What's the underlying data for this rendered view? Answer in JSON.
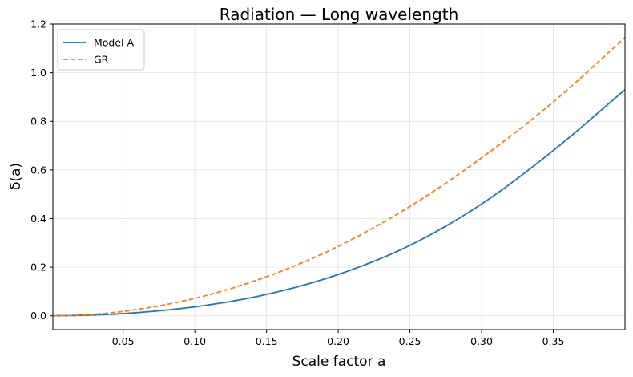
{
  "chart_data": {
    "type": "line",
    "title": "Radiation — Long wavelength",
    "xlabel": "Scale factor a",
    "ylabel": "δ(a)",
    "xlim": [
      0.001,
      0.4
    ],
    "ylim": [
      -0.057,
      1.2
    ],
    "xticks": [
      0.05,
      0.1,
      0.15,
      0.2,
      0.25,
      0.3,
      0.35
    ],
    "xtick_labels": [
      "0.05",
      "0.10",
      "0.15",
      "0.20",
      "0.25",
      "0.30",
      "0.35"
    ],
    "yticks": [
      0.0,
      0.2,
      0.4,
      0.6,
      0.8,
      1.0,
      1.2
    ],
    "ytick_labels": [
      "0.0",
      "0.2",
      "0.4",
      "0.6",
      "0.8",
      "1.0",
      "1.2"
    ],
    "grid": true,
    "legend_position": "top-left",
    "x": [
      0.001,
      0.02,
      0.05,
      0.1,
      0.15,
      0.2,
      0.25,
      0.3,
      0.35,
      0.4
    ],
    "series": [
      {
        "name": "Model A",
        "color": "#1f77b4",
        "style": "solid",
        "values": [
          0.0,
          0.002,
          0.009,
          0.037,
          0.088,
          0.17,
          0.29,
          0.46,
          0.68,
          0.93
        ]
      },
      {
        "name": "GR",
        "color": "#ff7f0e",
        "style": "dashed",
        "values": [
          0.0,
          0.003,
          0.018,
          0.072,
          0.161,
          0.286,
          0.45,
          0.65,
          0.88,
          1.145
        ]
      }
    ]
  }
}
